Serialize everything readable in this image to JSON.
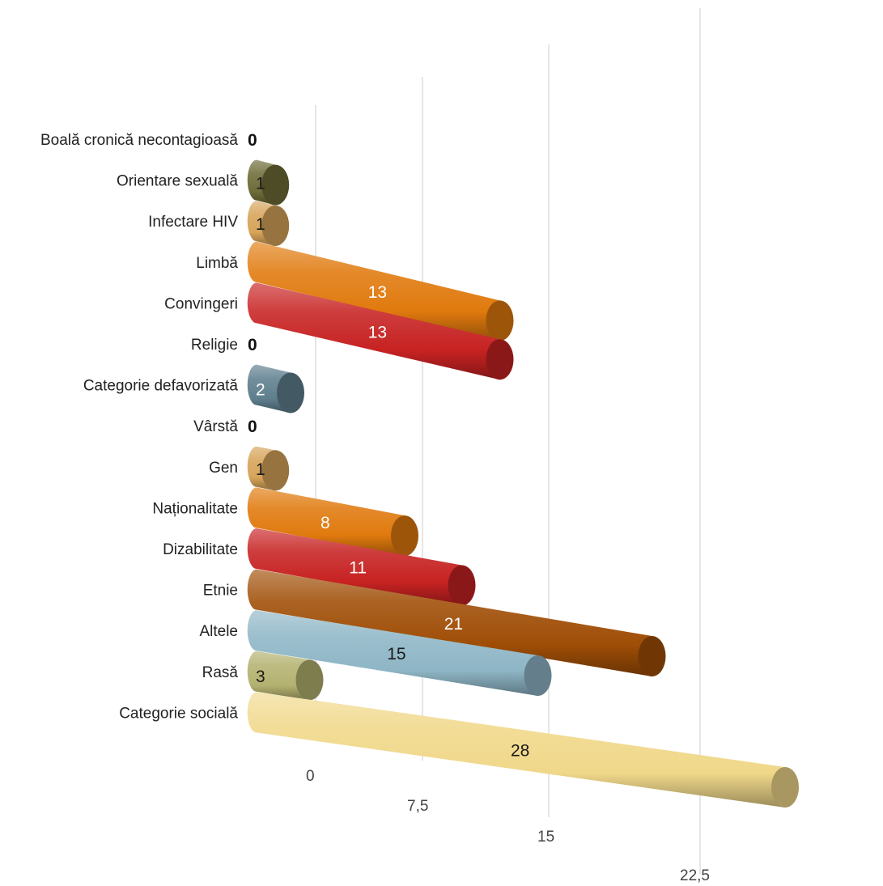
{
  "chart_data": {
    "type": "bar",
    "orientation": "horizontal",
    "style": "3d-cylinder",
    "title": "",
    "xlabel": "",
    "ylabel": "",
    "xlim": [
      0,
      30
    ],
    "x_ticks": [
      "0",
      "7,5",
      "15",
      "22,5"
    ],
    "grid": true,
    "legend": "none",
    "categories": [
      "Boală cronică necontagioasă",
      "Orientare sexuală",
      "Infectare HIV",
      "Limbă",
      "Convingeri",
      "Religie",
      "Categorie defavorizată",
      "Vârstă",
      "Gen",
      "Naționalitate",
      "Dizabilitate",
      "Etnie",
      "Altele",
      "Rasă",
      "Categorie socială"
    ],
    "values": [
      0,
      1,
      1,
      13,
      13,
      0,
      2,
      0,
      1,
      8,
      11,
      21,
      15,
      3,
      28
    ],
    "labels": [
      "0",
      "1",
      "1",
      "13",
      "13",
      "0",
      "2",
      "0",
      "1",
      "8",
      "11",
      "21",
      "15",
      "3",
      "28"
    ],
    "colors": [
      "#8b8a48",
      "#6e6c38",
      "#d7a45a",
      "#e07a0e",
      "#c72222",
      "#8b8a48",
      "#5f7f8e",
      "#8b8a48",
      "#d7a45a",
      "#e07a0e",
      "#c72222",
      "#a04e06",
      "#8fb6c6",
      "#b4b270",
      "#f0d88a"
    ]
  }
}
